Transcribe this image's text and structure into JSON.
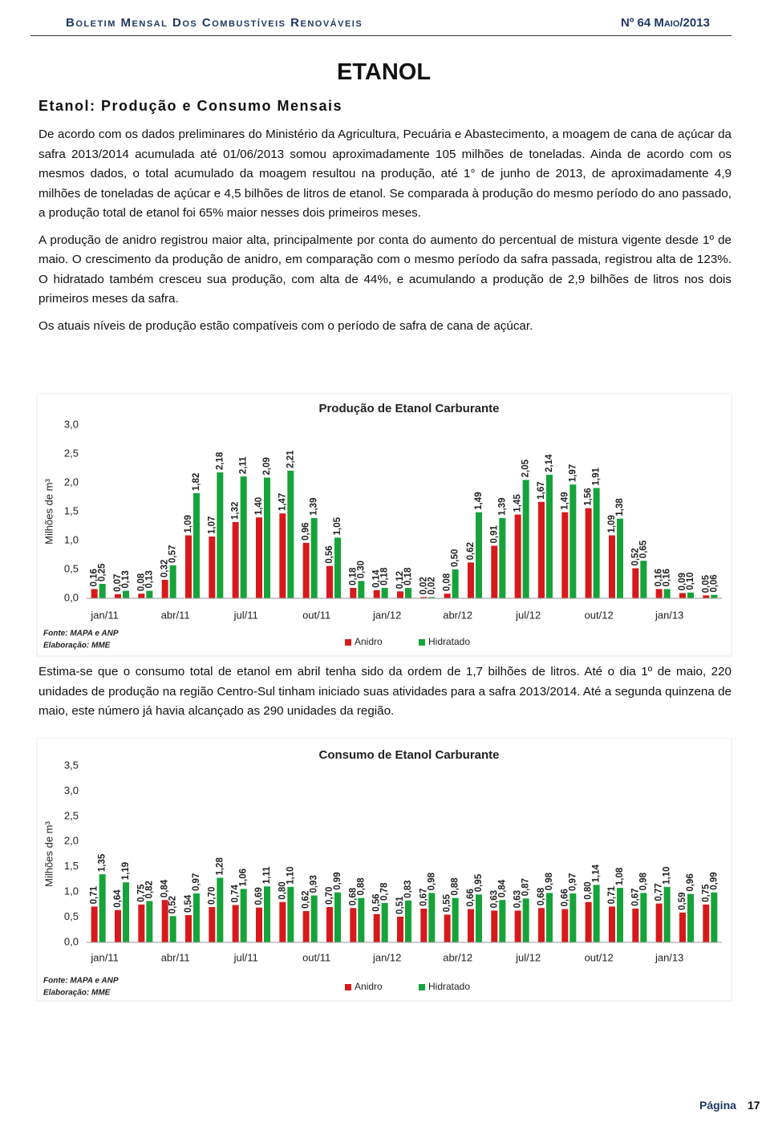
{
  "header": {
    "bulletin": "Boletim Mensal Dos Combustíveis Renováveis",
    "issue": "Nº 64 Maio/2013"
  },
  "title": "ETANOL",
  "section": "Etanol: Produção e Consumo Mensais",
  "paragraphs": [
    "De acordo com os dados preliminares do Ministério da Agricultura, Pecuária e Abastecimento, a moagem de cana de açúcar da safra 2013/2014 acumulada até 01/06/2013 somou aproximadamente 105 milhões de toneladas. Ainda de acordo com os mesmos dados, o total acumulado da moagem resultou na produção, até 1° de junho de 2013, de aproximadamente 4,9 milhões de toneladas de açúcar e 4,5 bilhões de litros de etanol. Se comparada à produção do mesmo período do ano passado, a produção total de etanol foi 65% maior nesses dois primeiros meses.",
    "A produção de anidro registrou maior alta, principalmente por conta do aumento do percentual de mistura vigente desde 1º de maio. O crescimento da produção de anidro, em comparação com o mesmo período da safra passada, registrou alta de 123%. O hidratado também cresceu sua produção, com alta de 44%, e acumulando a produção de 2,9 bilhões de litros nos dois primeiros meses da safra.",
    "Os atuais níveis de produção estão compatíveis com o período de safra de cana de açúcar.",
    "Estima-se que o consumo total de etanol em abril tenha sido da ordem de 1,7 bilhões de litros. Até o dia 1º de maio, 220 unidades de produção na região Centro-Sul tinham iniciado suas atividades para a safra 2013/2014. Até a segunda quinzena de maio, este número já havia alcançado as 290 unidades da região."
  ],
  "footer": {
    "page_label": "Página",
    "page_number": "17"
  },
  "chart_data": [
    {
      "type": "bar",
      "title": "Produção de Etanol Carburante",
      "ylabel": "Milhões de m³",
      "source": "Fonte: MAPA e ANP",
      "credit": "Elaboração: MME",
      "categories": [
        "jan/11",
        null,
        null,
        "abr/11",
        null,
        null,
        "jul/11",
        null,
        null,
        "out/11",
        null,
        null,
        "jan/12",
        null,
        null,
        "abr/12",
        null,
        null,
        "jul/12",
        null,
        null,
        "out/12",
        null,
        null,
        "jan/13",
        null,
        null
      ],
      "ylim": [
        0,
        3
      ],
      "yticks": [
        {
          "value": 0,
          "label": "0,0"
        },
        {
          "value": 0.5,
          "label": "0,5"
        },
        {
          "value": 1,
          "label": "1,0"
        },
        {
          "value": 1.5,
          "label": "1,5"
        },
        {
          "value": 2,
          "label": "2,0"
        },
        {
          "value": 2.5,
          "label": "2,5"
        },
        {
          "value": 3,
          "label": "3,0"
        }
      ],
      "series": [
        {
          "name": "Anidro",
          "color": "#d7191c",
          "values": [
            0.16,
            0.07,
            0.08,
            0.32,
            1.09,
            1.07,
            1.32,
            1.4,
            1.47,
            0.96,
            0.56,
            0.18,
            0.14,
            0.12,
            0.02,
            0.08,
            0.62,
            0.91,
            1.45,
            1.67,
            1.49,
            1.56,
            1.09,
            0.52,
            0.16,
            0.09,
            0.05
          ],
          "value_labels": [
            "0,16",
            "0,07",
            "0,08",
            "0,32",
            "1,09",
            "1,07",
            "1,32",
            "1,40",
            "1,47",
            "0,96",
            "0,56",
            "0,18",
            "0,14",
            "0,12",
            "0,02",
            "0,08",
            "0,62",
            "0,91",
            "1,45",
            "1,67",
            "1,49",
            "1,56",
            "1,09",
            "0,52",
            "0,16",
            "0,09",
            "0,05"
          ]
        },
        {
          "name": "Hidratado",
          "color": "#15a33a",
          "values": [
            0.25,
            0.13,
            0.13,
            0.57,
            1.82,
            2.18,
            2.11,
            2.09,
            2.21,
            1.39,
            1.05,
            0.3,
            0.18,
            0.18,
            0.02,
            0.5,
            1.49,
            1.39,
            2.05,
            2.14,
            1.97,
            1.91,
            1.38,
            0.65,
            0.16,
            0.1,
            0.06
          ],
          "value_labels": [
            "0,25",
            "0,13",
            "0,13",
            "0,57",
            "1,82",
            "2,18",
            "2,11",
            "2,09",
            "2,21",
            "1,39",
            "1,05",
            "0,30",
            "0,18",
            "0,18",
            "0,02",
            "0,50",
            "1,49",
            "1,39",
            "2,05",
            "2,14",
            "1,97",
            "1,91",
            "1,38",
            "0,65",
            "0,16",
            "0,10",
            "0,06"
          ]
        }
      ]
    },
    {
      "type": "bar",
      "title": "Consumo de Etanol Carburante",
      "ylabel": "Milhões de m³",
      "source": "Fonte: MAPA e ANP",
      "credit": "Elaboração: MME",
      "categories": [
        "jan/11",
        null,
        null,
        "abr/11",
        null,
        null,
        "jul/11",
        null,
        null,
        "out/11",
        null,
        null,
        "jan/12",
        null,
        null,
        "abr/12",
        null,
        null,
        "jul/12",
        null,
        null,
        "out/12",
        null,
        null,
        "jan/13",
        null,
        null
      ],
      "ylim": [
        0,
        3.5
      ],
      "yticks": [
        {
          "value": 0,
          "label": "0,0"
        },
        {
          "value": 0.5,
          "label": "0,5"
        },
        {
          "value": 1,
          "label": "1,0"
        },
        {
          "value": 1.5,
          "label": "1,5"
        },
        {
          "value": 2,
          "label": "2,0"
        },
        {
          "value": 2.5,
          "label": "2,5"
        },
        {
          "value": 3,
          "label": "3,0"
        },
        {
          "value": 3.5,
          "label": "3,5"
        }
      ],
      "series": [
        {
          "name": "Anidro",
          "color": "#d7191c",
          "values": [
            0.71,
            0.64,
            0.75,
            0.84,
            0.54,
            0.7,
            0.74,
            0.69,
            0.8,
            0.62,
            0.7,
            0.68,
            0.56,
            0.51,
            0.67,
            0.55,
            0.66,
            0.63,
            0.63,
            0.68,
            0.66,
            0.8,
            0.71,
            0.67,
            0.77,
            0.59,
            0.75
          ],
          "value_labels": [
            "0,71",
            "0,64",
            "0,75",
            "0,84",
            "0,54",
            "0,70",
            "0,74",
            "0,69",
            "0,80",
            "0,62",
            "0,70",
            "0,68",
            "0,56",
            "0,51",
            "0,67",
            "0,55",
            "0,66",
            "0,63",
            "0,63",
            "0,68",
            "0,66",
            "0,80",
            "0,71",
            "0,67",
            "0,77",
            "0,59",
            "0,75"
          ]
        },
        {
          "name": "Hidratado",
          "color": "#15a33a",
          "values": [
            1.35,
            1.19,
            0.82,
            0.52,
            0.97,
            1.28,
            1.06,
            1.11,
            1.1,
            0.93,
            0.99,
            0.88,
            0.78,
            0.83,
            0.98,
            0.88,
            0.95,
            0.84,
            0.87,
            0.98,
            0.97,
            1.14,
            1.08,
            0.98,
            1.1,
            0.96,
            0.99
          ],
          "value_labels": [
            "1,35",
            "1,19",
            "0,82",
            "0,52",
            "0,97",
            "1,28",
            "1,06",
            "1,11",
            "1,10",
            "0,93",
            "0,99",
            "0,88",
            "0,78",
            "0,83",
            "0,98",
            "0,88",
            "0,95",
            "0,84",
            "0,87",
            "0,98",
            "0,97",
            "1,14",
            "1,08",
            "0,98",
            "1,10",
            "0,96",
            "0,99"
          ]
        }
      ]
    }
  ]
}
